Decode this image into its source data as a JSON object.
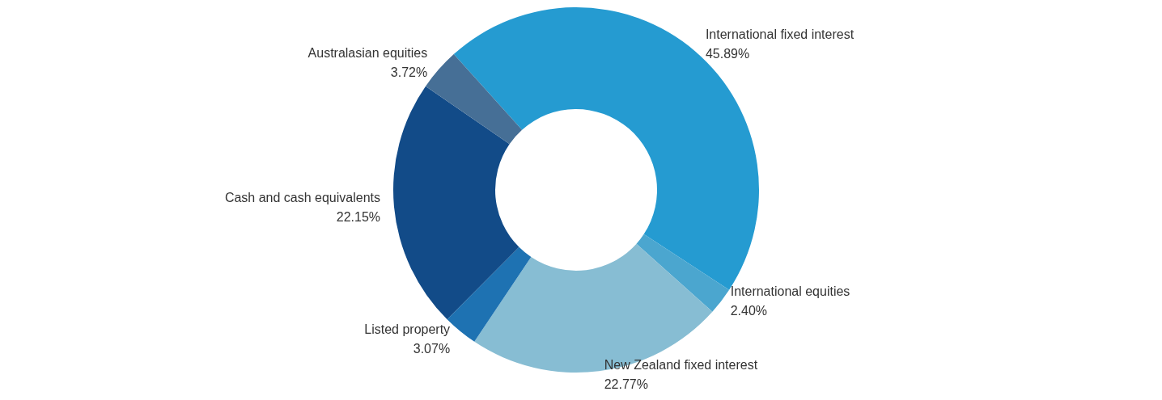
{
  "chart_data": {
    "type": "donut",
    "categories": [
      "International fixed interest",
      "International equities",
      "New Zealand fixed interest",
      "Listed property",
      "Cash and cash equivalents",
      "Australasian equities"
    ],
    "values": [
      45.89,
      2.4,
      22.77,
      3.07,
      22.15,
      3.72
    ],
    "value_labels": [
      "45.89%",
      "2.40%",
      "22.77%",
      "3.07%",
      "22.15%",
      "3.72%"
    ],
    "colors": [
      "#259bd1",
      "#4ba6cf",
      "#87bdd3",
      "#1e72b2",
      "#124b88",
      "#466f96"
    ],
    "legend": false
  }
}
